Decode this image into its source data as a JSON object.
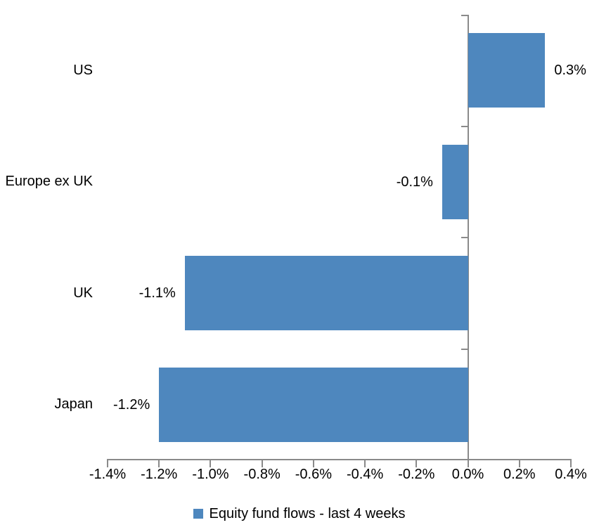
{
  "chart_data": {
    "type": "bar",
    "orientation": "horizontal",
    "title": "",
    "categories": [
      "US",
      "Europe ex UK",
      "UK",
      "Japan"
    ],
    "values": [
      0.3,
      -0.1,
      -1.1,
      -1.2
    ],
    "value_labels": [
      "0.3%",
      "-0.1%",
      "-1.1%",
      "-1.2%"
    ],
    "units": "%",
    "series": [
      {
        "name": "Equity fund flows - last 4 weeks",
        "values": [
          0.3,
          -0.1,
          -1.1,
          -1.2
        ]
      }
    ],
    "xlim": [
      -1.4,
      0.4
    ],
    "x_ticks": [
      -1.4,
      -1.2,
      -1.0,
      -0.8,
      -0.6,
      -0.4,
      -0.2,
      0.0,
      0.2,
      0.4
    ],
    "x_tick_labels": [
      "-1.4%",
      "-1.2%",
      "-1.0%",
      "-0.8%",
      "-0.6%",
      "-0.4%",
      "-0.2%",
      "0.0%",
      "0.2%",
      "0.4%"
    ],
    "grid": false,
    "legend": {
      "position": "bottom",
      "entries": [
        "Equity fund flows - last 4 weeks"
      ]
    },
    "colors": {
      "bar": "#4E87BE",
      "axis": "#8A8A8A",
      "text": "#000000",
      "background": "#FFFFFF"
    }
  }
}
